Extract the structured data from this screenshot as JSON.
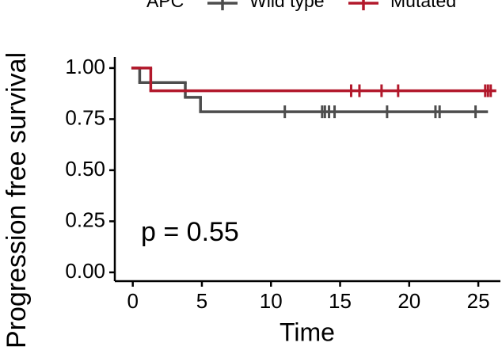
{
  "chart_data": {
    "type": "survival",
    "legend_title": "APC",
    "x_label": "Time",
    "y_label": "Progression free survival",
    "annotation": "p = 0.55",
    "xlim": [
      -1.3,
      26.6
    ],
    "xticks": [
      0,
      5,
      10,
      15,
      20,
      25
    ],
    "ylim": [
      -0.043,
      1.054
    ],
    "yticks": [
      {
        "value": 0,
        "label": "0.00"
      },
      {
        "value": 0.25,
        "label": "0.25"
      },
      {
        "value": 0.5,
        "label": "0.50"
      },
      {
        "value": 0.75,
        "label": "0.75"
      },
      {
        "value": 1,
        "label": "1.00"
      }
    ],
    "series": [
      {
        "name": "Wild type",
        "color": "#4d4d4d",
        "x": [
          0,
          0.5,
          3.8,
          4.9,
          25.6
        ],
        "values": [
          1,
          0.929,
          0.857,
          0.786,
          0.786
        ],
        "censor_x": [
          11,
          13.7,
          13.9,
          14.2,
          14.6,
          18.4,
          21.9,
          22.2,
          24.8
        ],
        "censor_values": [
          0.786,
          0.786,
          0.786,
          0.786,
          0.786,
          0.786,
          0.786,
          0.786,
          0.786
        ]
      },
      {
        "name": "Mutated",
        "color": "#b2182b",
        "x": [
          0,
          1.3,
          26.2
        ],
        "values": [
          1,
          0.889,
          0.889
        ],
        "censor_x": [
          15.8,
          16.4,
          18,
          19.2,
          25.5,
          25.7,
          25.9
        ],
        "censor_values": [
          0.889,
          0.889,
          0.889,
          0.889,
          0.889,
          0.889,
          0.889
        ]
      }
    ]
  }
}
